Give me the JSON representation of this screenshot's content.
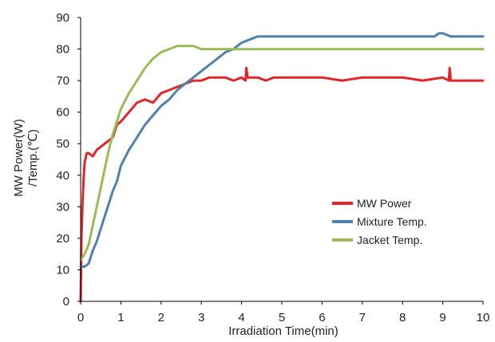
{
  "chart_data": {
    "type": "line",
    "xlabel": "Irradiation Time(min)",
    "ylabel_lines": [
      "MW Power(W)",
      "/Temp.(℃)"
    ],
    "xlim": [
      0,
      10
    ],
    "ylim": [
      0,
      90
    ],
    "x_ticks": [
      "0",
      "1",
      "2",
      "3",
      "4",
      "5",
      "6",
      "7",
      "8",
      "9",
      "10"
    ],
    "y_ticks": [
      "0",
      "10",
      "20",
      "30",
      "40",
      "50",
      "60",
      "70",
      "80",
      "90"
    ],
    "grid": false,
    "legend_position": "center-right",
    "series": [
      {
        "name": "MW Power",
        "color": "#e0262b",
        "x": [
          0,
          0.02,
          0.05,
          0.08,
          0.1,
          0.15,
          0.2,
          0.3,
          0.4,
          0.5,
          0.6,
          0.7,
          0.8,
          0.9,
          1.0,
          1.2,
          1.4,
          1.6,
          1.8,
          2.0,
          2.2,
          2.4,
          2.6,
          2.8,
          3.0,
          3.2,
          3.4,
          3.6,
          3.8,
          4.0,
          4.1,
          4.12,
          4.15,
          4.2,
          4.4,
          4.6,
          4.8,
          5.0,
          5.5,
          6.0,
          6.5,
          7.0,
          7.5,
          8.0,
          8.5,
          9.0,
          9.15,
          9.17,
          9.2,
          9.5,
          10.0
        ],
        "y": [
          0,
          20,
          32,
          40,
          44,
          47,
          47,
          46,
          48,
          49,
          50,
          51,
          52,
          56,
          57,
          60,
          63,
          64,
          63,
          66,
          67,
          68,
          69,
          70,
          70,
          71,
          71,
          71,
          70,
          71,
          70,
          74,
          71,
          71,
          71,
          70,
          71,
          71,
          71,
          71,
          70,
          71,
          71,
          71,
          70,
          71,
          70,
          74,
          70,
          70,
          70
        ]
      },
      {
        "name": "Mixture Temp.",
        "color": "#4f81ad",
        "x": [
          0,
          0.1,
          0.2,
          0.3,
          0.4,
          0.5,
          0.6,
          0.7,
          0.8,
          0.9,
          1.0,
          1.2,
          1.4,
          1.6,
          1.8,
          2.0,
          2.2,
          2.4,
          2.6,
          2.8,
          3.0,
          3.2,
          3.4,
          3.6,
          3.8,
          4.0,
          4.2,
          4.4,
          4.6,
          4.8,
          5.0,
          5.5,
          6.0,
          6.5,
          7.0,
          7.5,
          8.0,
          8.5,
          8.8,
          8.9,
          9.0,
          9.2,
          9.5,
          10.0
        ],
        "y": [
          11,
          11,
          12,
          16,
          19,
          23,
          27,
          31,
          35,
          38,
          43,
          48,
          52,
          56,
          59,
          62,
          64,
          67,
          69,
          71,
          73,
          75,
          77,
          79,
          80,
          82,
          83,
          84,
          84,
          84,
          84,
          84,
          84,
          84,
          84,
          84,
          84,
          84,
          84,
          85,
          85,
          84,
          84,
          84
        ]
      },
      {
        "name": "Jacket Temp.",
        "color": "#9bbb59",
        "x": [
          0,
          0.1,
          0.2,
          0.3,
          0.4,
          0.5,
          0.6,
          0.7,
          0.8,
          0.9,
          1.0,
          1.2,
          1.4,
          1.6,
          1.8,
          2.0,
          2.2,
          2.4,
          2.6,
          2.8,
          3.0,
          3.2,
          3.5,
          4.0,
          4.5,
          5.0,
          6.0,
          7.0,
          8.0,
          9.0,
          10.0
        ],
        "y": [
          13,
          15,
          18,
          24,
          30,
          36,
          42,
          48,
          53,
          57,
          61,
          66,
          70,
          74,
          77,
          79,
          80,
          81,
          81,
          81,
          80,
          80,
          80,
          80,
          80,
          80,
          80,
          80,
          80,
          80,
          80
        ]
      }
    ]
  }
}
